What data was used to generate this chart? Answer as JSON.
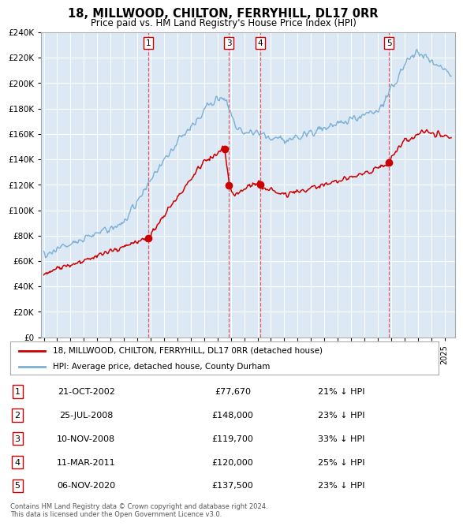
{
  "title": "18, MILLWOOD, CHILTON, FERRYHILL, DL17 0RR",
  "subtitle": "Price paid vs. HM Land Registry's House Price Index (HPI)",
  "ylim": [
    0,
    240000
  ],
  "yticks": [
    0,
    20000,
    40000,
    60000,
    80000,
    100000,
    120000,
    140000,
    160000,
    180000,
    200000,
    220000,
    240000
  ],
  "bg_color": "#dce9f5",
  "grid_color": "#ffffff",
  "legend_label_red": "18, MILLWOOD, CHILTON, FERRYHILL, DL17 0RR (detached house)",
  "legend_label_blue": "HPI: Average price, detached house, County Durham",
  "footer": "Contains HM Land Registry data © Crown copyright and database right 2024.\nThis data is licensed under the Open Government Licence v3.0.",
  "transactions": [
    {
      "num": 1,
      "date": "21-OCT-2002",
      "price": 77670,
      "pct": "21% ↓ HPI",
      "date_val": 2002.81,
      "show_vline": true
    },
    {
      "num": 2,
      "date": "25-JUL-2008",
      "price": 148000,
      "pct": "23% ↓ HPI",
      "date_val": 2008.56,
      "show_vline": false
    },
    {
      "num": 3,
      "date": "10-NOV-2008",
      "price": 119700,
      "pct": "33% ↓ HPI",
      "date_val": 2008.86,
      "show_vline": true
    },
    {
      "num": 4,
      "date": "11-MAR-2011",
      "price": 120000,
      "pct": "25% ↓ HPI",
      "date_val": 2011.19,
      "show_vline": true
    },
    {
      "num": 5,
      "date": "06-NOV-2020",
      "price": 137500,
      "pct": "23% ↓ HPI",
      "date_val": 2020.85,
      "show_vline": true
    }
  ],
  "red_color": "#cc0000",
  "blue_color": "#7aafd4",
  "vline_color": "#dd4444",
  "marker_box_color": "#cc0000",
  "dot_color": "#cc0000"
}
